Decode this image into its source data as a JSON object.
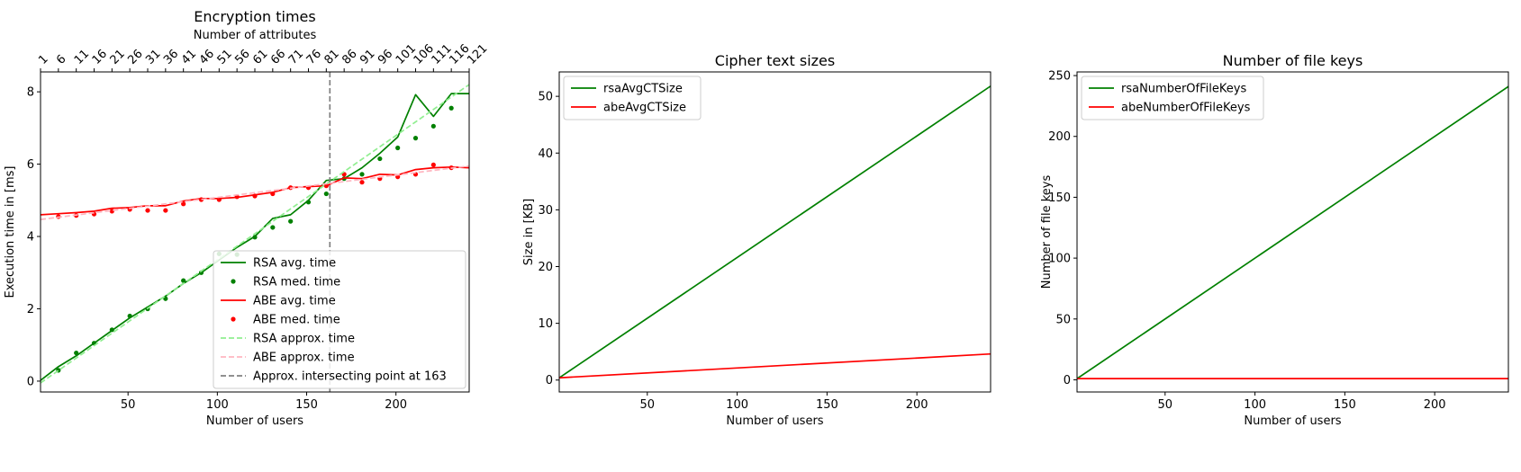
{
  "chart_data": [
    {
      "type": "line",
      "title": "Encryption times",
      "xlabel": "Number of users",
      "ylabel": "Execution time in [ms]",
      "xlim": [
        1,
        241
      ],
      "ylim": [
        -0.3,
        8.55
      ],
      "xticks": [
        50,
        100,
        150,
        200
      ],
      "yticks": [
        0,
        2,
        4,
        6,
        8
      ],
      "top_axis": {
        "label": "Number of attributes",
        "ticks": [
          1,
          6,
          11,
          16,
          21,
          26,
          31,
          36,
          41,
          46,
          51,
          56,
          61,
          66,
          71,
          76,
          81,
          86,
          91,
          96,
          101,
          106,
          111,
          116,
          121
        ]
      },
      "legend_position": "lower-right",
      "series": [
        {
          "name": "RSA avg. time",
          "style": "line",
          "color": "#008000",
          "x": [
            1,
            11,
            21,
            31,
            41,
            51,
            61,
            71,
            81,
            91,
            101,
            111,
            121,
            131,
            141,
            151,
            161,
            171,
            181,
            191,
            201,
            211,
            221,
            231,
            241
          ],
          "y": [
            0.02,
            0.4,
            0.7,
            1.05,
            1.4,
            1.75,
            2.05,
            2.35,
            2.7,
            3.0,
            3.35,
            3.7,
            4.0,
            4.5,
            4.6,
            5.0,
            5.55,
            5.6,
            5.9,
            6.3,
            6.75,
            7.92,
            7.32,
            7.95,
            7.95
          ]
        },
        {
          "name": "RSA med. time",
          "style": "points",
          "color": "#008000",
          "x": [
            11,
            21,
            31,
            41,
            51,
            61,
            71,
            81,
            91,
            101,
            111,
            121,
            131,
            141,
            151,
            161,
            171,
            181,
            191,
            201,
            211,
            221,
            231
          ],
          "y": [
            0.3,
            0.78,
            1.05,
            1.42,
            1.8,
            2.0,
            2.28,
            2.78,
            3.0,
            3.52,
            3.5,
            3.98,
            4.25,
            4.42,
            4.95,
            5.18,
            5.6,
            5.72,
            6.15,
            6.45,
            6.72,
            7.05,
            7.55
          ]
        },
        {
          "name": "ABE avg. time",
          "style": "line",
          "color": "#ff0000",
          "x": [
            1,
            11,
            21,
            31,
            41,
            51,
            61,
            71,
            81,
            91,
            101,
            111,
            121,
            131,
            141,
            151,
            161,
            171,
            181,
            191,
            201,
            211,
            221,
            231,
            241
          ],
          "y": [
            4.6,
            4.63,
            4.66,
            4.7,
            4.78,
            4.8,
            4.85,
            4.85,
            4.98,
            5.05,
            5.05,
            5.08,
            5.15,
            5.22,
            5.35,
            5.38,
            5.4,
            5.62,
            5.6,
            5.72,
            5.7,
            5.85,
            5.9,
            5.92,
            5.9
          ]
        },
        {
          "name": "ABE med. time",
          "style": "points",
          "color": "#ff0000",
          "x": [
            11,
            21,
            31,
            41,
            51,
            61,
            71,
            81,
            91,
            101,
            111,
            121,
            131,
            141,
            151,
            161,
            171,
            181,
            191,
            201,
            211,
            221,
            231
          ],
          "y": [
            4.55,
            4.58,
            4.62,
            4.7,
            4.75,
            4.72,
            4.72,
            4.9,
            5.02,
            5.02,
            5.1,
            5.12,
            5.18,
            5.35,
            5.35,
            5.4,
            5.72,
            5.5,
            5.6,
            5.65,
            5.72,
            5.98,
            5.9
          ]
        },
        {
          "name": "RSA approx. time",
          "style": "dashed",
          "color": "#90ee90",
          "x": [
            1,
            241
          ],
          "y": [
            -0.05,
            8.2
          ]
        },
        {
          "name": "ABE approx. time",
          "style": "dashed",
          "color": "#ffb6c1",
          "x": [
            1,
            241
          ],
          "y": [
            4.47,
            5.95
          ]
        },
        {
          "name": "Approx. intersecting point at 163",
          "style": "vline",
          "color": "#808080",
          "x": [
            163
          ]
        }
      ]
    },
    {
      "type": "line",
      "title": "Cipher text sizes",
      "xlabel": "Number of users",
      "ylabel": "Size in [KB]",
      "xlim": [
        1,
        241
      ],
      "ylim": [
        -2.1,
        54.3
      ],
      "xticks": [
        50,
        100,
        150,
        200
      ],
      "yticks": [
        0,
        10,
        20,
        30,
        40,
        50
      ],
      "legend_position": "upper-left",
      "series": [
        {
          "name": "rsaAvgCTSize",
          "style": "line",
          "color": "#008000",
          "x": [
            1,
            241
          ],
          "y": [
            0.4,
            51.8
          ]
        },
        {
          "name": "abeAvgCTSize",
          "style": "line",
          "color": "#ff0000",
          "x": [
            1,
            241
          ],
          "y": [
            0.4,
            4.6
          ]
        }
      ]
    },
    {
      "type": "line",
      "title": "Number of file keys",
      "xlabel": "Number of users",
      "ylabel": "Number of file keys",
      "xlim": [
        1,
        241
      ],
      "ylim": [
        -10,
        253
      ],
      "xticks": [
        50,
        100,
        150,
        200
      ],
      "yticks": [
        0,
        50,
        100,
        150,
        200,
        250
      ],
      "legend_position": "upper-left",
      "series": [
        {
          "name": "rsaNumberOfFileKeys",
          "style": "line",
          "color": "#008000",
          "x": [
            1,
            241
          ],
          "y": [
            1,
            241
          ]
        },
        {
          "name": "abeNumberOfFileKeys",
          "style": "line",
          "color": "#ff0000",
          "x": [
            1,
            241
          ],
          "y": [
            1,
            1
          ]
        }
      ]
    }
  ]
}
